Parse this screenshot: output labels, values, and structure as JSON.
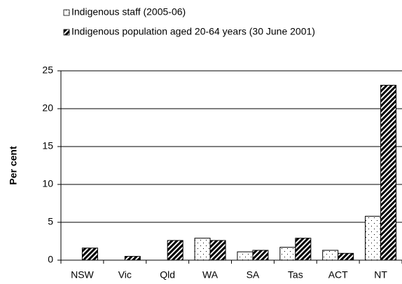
{
  "chart_data": {
    "type": "bar",
    "y_label": "Per cent",
    "categories": [
      "NSW",
      "Vic",
      "Qld",
      "WA",
      "SA",
      "Tas",
      "ACT",
      "NT"
    ],
    "series": [
      {
        "name": "Indigenous staff (2005-06)",
        "color": "#000000",
        "pattern": "dots",
        "values": [
          null,
          null,
          null,
          2.9,
          1.1,
          1.7,
          1.3,
          5.8
        ]
      },
      {
        "name": "Indigenous population aged 20-64 years (30 June 2001)",
        "color": "#000000",
        "pattern": "hatch",
        "values": [
          1.6,
          0.5,
          2.6,
          2.6,
          1.3,
          2.9,
          0.9,
          23.1
        ]
      }
    ],
    "ylim": [
      0,
      25
    ],
    "yticks": [
      0,
      5,
      10,
      15,
      20,
      25
    ],
    "grid": true
  }
}
